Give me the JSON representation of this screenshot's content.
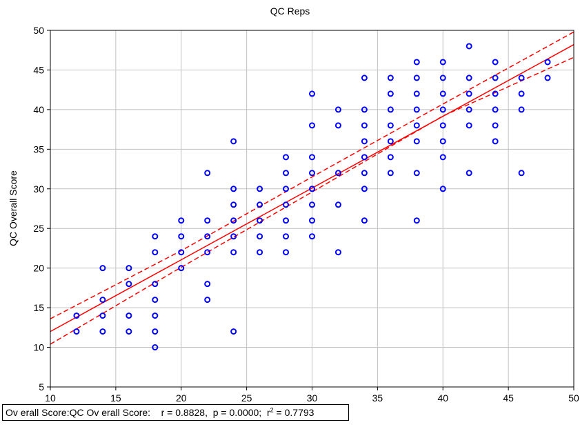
{
  "chart_data": {
    "type": "scatter",
    "title": "QC Reps",
    "xlabel": "",
    "ylabel": "QC Overall Score",
    "xlim": [
      10,
      50
    ],
    "ylim": [
      5,
      50
    ],
    "xticks": [
      10,
      15,
      20,
      25,
      30,
      35,
      40,
      45,
      50
    ],
    "yticks": [
      5,
      10,
      15,
      20,
      25,
      30,
      35,
      40,
      45,
      50
    ],
    "grid": true,
    "colors": {
      "points": "#0000ff",
      "fit": "#ff0000",
      "grid": "#c0c0c0"
    },
    "points": [
      [
        12,
        14
      ],
      [
        12,
        12
      ],
      [
        14,
        20
      ],
      [
        14,
        16
      ],
      [
        14,
        14
      ],
      [
        14,
        12
      ],
      [
        16,
        20
      ],
      [
        16,
        18
      ],
      [
        16,
        14
      ],
      [
        16,
        12
      ],
      [
        18,
        24
      ],
      [
        18,
        22
      ],
      [
        18,
        18
      ],
      [
        18,
        16
      ],
      [
        18,
        14
      ],
      [
        18,
        12
      ],
      [
        18,
        10
      ],
      [
        20,
        26
      ],
      [
        20,
        24
      ],
      [
        20,
        22
      ],
      [
        20,
        20
      ],
      [
        22,
        32
      ],
      [
        22,
        26
      ],
      [
        22,
        24
      ],
      [
        22,
        22
      ],
      [
        22,
        18
      ],
      [
        22,
        16
      ],
      [
        24,
        36
      ],
      [
        24,
        30
      ],
      [
        24,
        28
      ],
      [
        24,
        26
      ],
      [
        24,
        24
      ],
      [
        24,
        22
      ],
      [
        24,
        12
      ],
      [
        26,
        30
      ],
      [
        26,
        28
      ],
      [
        26,
        26
      ],
      [
        26,
        24
      ],
      [
        26,
        22
      ],
      [
        28,
        34
      ],
      [
        28,
        32
      ],
      [
        28,
        30
      ],
      [
        28,
        28
      ],
      [
        28,
        26
      ],
      [
        28,
        24
      ],
      [
        28,
        22
      ],
      [
        30,
        42
      ],
      [
        30,
        38
      ],
      [
        30,
        34
      ],
      [
        30,
        32
      ],
      [
        30,
        30
      ],
      [
        30,
        28
      ],
      [
        30,
        26
      ],
      [
        30,
        24
      ],
      [
        32,
        40
      ],
      [
        32,
        38
      ],
      [
        32,
        32
      ],
      [
        32,
        28
      ],
      [
        32,
        22
      ],
      [
        34,
        44
      ],
      [
        34,
        40
      ],
      [
        34,
        38
      ],
      [
        34,
        36
      ],
      [
        34,
        34
      ],
      [
        34,
        32
      ],
      [
        34,
        30
      ],
      [
        34,
        26
      ],
      [
        36,
        44
      ],
      [
        36,
        42
      ],
      [
        36,
        40
      ],
      [
        36,
        38
      ],
      [
        36,
        36
      ],
      [
        36,
        34
      ],
      [
        36,
        32
      ],
      [
        38,
        46
      ],
      [
        38,
        44
      ],
      [
        38,
        42
      ],
      [
        38,
        40
      ],
      [
        38,
        38
      ],
      [
        38,
        36
      ],
      [
        38,
        32
      ],
      [
        38,
        26
      ],
      [
        40,
        46
      ],
      [
        40,
        44
      ],
      [
        40,
        42
      ],
      [
        40,
        40
      ],
      [
        40,
        38
      ],
      [
        40,
        36
      ],
      [
        40,
        34
      ],
      [
        40,
        30
      ],
      [
        42,
        48
      ],
      [
        42,
        44
      ],
      [
        42,
        42
      ],
      [
        42,
        40
      ],
      [
        42,
        38
      ],
      [
        42,
        32
      ],
      [
        44,
        46
      ],
      [
        44,
        44
      ],
      [
        44,
        42
      ],
      [
        44,
        40
      ],
      [
        44,
        38
      ],
      [
        44,
        36
      ],
      [
        46,
        44
      ],
      [
        46,
        42
      ],
      [
        46,
        40
      ],
      [
        46,
        32
      ],
      [
        48,
        46
      ],
      [
        48,
        44
      ]
    ],
    "fit_line": {
      "x": [
        10,
        50
      ],
      "y": [
        12.0,
        48.2
      ]
    },
    "confidence_upper": {
      "x": [
        10,
        20,
        30,
        40,
        50
      ],
      "y": [
        13.6,
        22.2,
        31.5,
        40.7,
        49.8
      ]
    },
    "confidence_lower": {
      "x": [
        10,
        20,
        30,
        40,
        50
      ],
      "y": [
        10.4,
        20.1,
        29.6,
        39.2,
        46.6
      ]
    }
  },
  "stats": {
    "label": "Ov erall Score:QC Ov erall Score:",
    "r_text": "r = 0.8828,",
    "p_text": "p = 0.0000;",
    "r2_prefix": "r",
    "r2_sup": "2",
    "r2_value": " = 0.7793"
  }
}
